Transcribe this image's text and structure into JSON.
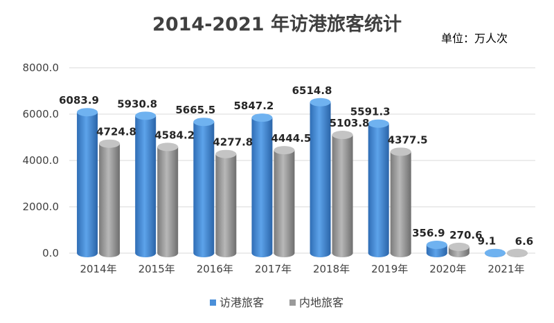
{
  "chart_data": {
    "type": "bar",
    "title": "2014-2021 年访港旅客统计",
    "unit_label": "单位：万人次",
    "categories": [
      "2014年",
      "2015年",
      "2016年",
      "2017年",
      "2018年",
      "2019年",
      "2020年",
      "2021年"
    ],
    "series": [
      {
        "name": "访港旅客",
        "color": "#4A8FD9",
        "values": [
          6083.9,
          5930.8,
          5665.5,
          5847.2,
          6514.8,
          5591.3,
          356.9,
          9.1
        ],
        "labels": [
          "6083.9",
          "5930.8",
          "5665.5",
          "5847.2",
          "6514.8",
          "5591.3",
          "356.9",
          "9.1"
        ]
      },
      {
        "name": "内地旅客",
        "color": "#9A9A9A",
        "values": [
          4724.8,
          4584.2,
          4277.8,
          4444.5,
          5103.8,
          4377.5,
          270.6,
          6.6
        ],
        "labels": [
          "4724.8",
          "4584.2",
          "4277.8",
          "4444.5",
          "5103.8",
          "4377.5",
          "270.6",
          "6.6"
        ]
      }
    ],
    "ylim": [
      0,
      8000
    ],
    "yticks": [
      "0.0",
      "2000.0",
      "4000.0",
      "6000.0",
      "8000.0"
    ],
    "ytick_values": [
      0,
      2000,
      4000,
      6000,
      8000
    ],
    "grid": true,
    "legend_position": "bottom"
  }
}
